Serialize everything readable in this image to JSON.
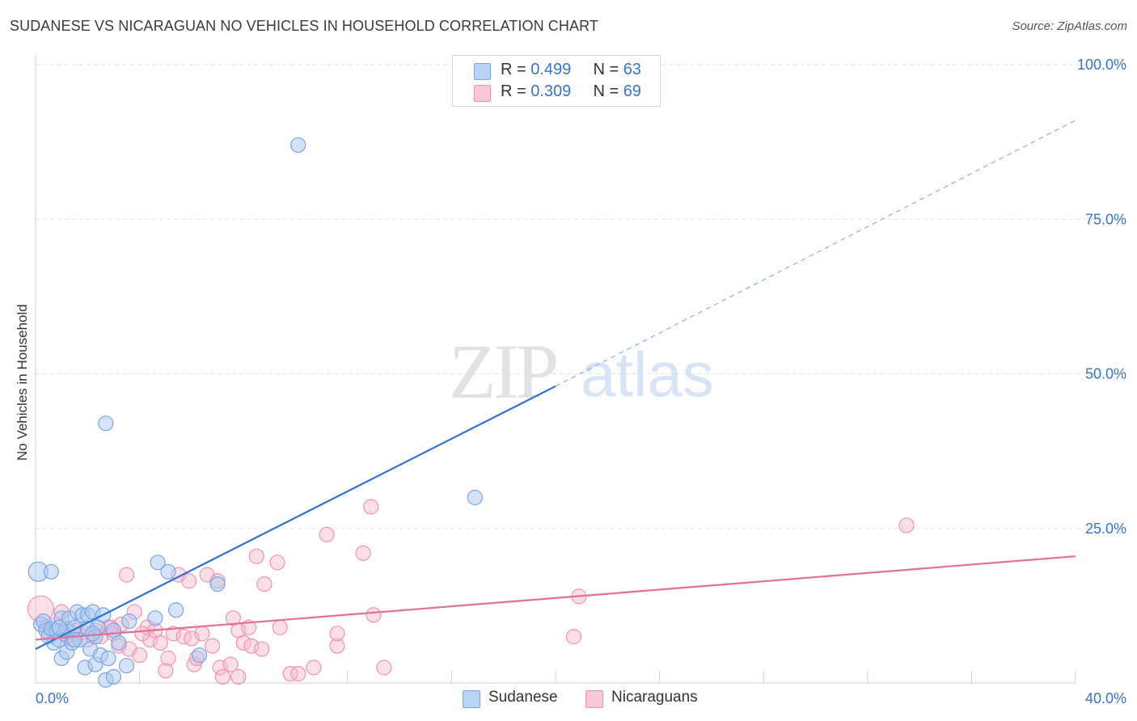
{
  "header": {
    "title": "SUDANESE VS NICARAGUAN NO VEHICLES IN HOUSEHOLD CORRELATION CHART",
    "source": "Source: ZipAtlas.com"
  },
  "legend_top": {
    "rows": [
      {
        "r_label": "R = ",
        "r_value": "0.499",
        "n_label": "N = ",
        "n_value": "63"
      },
      {
        "r_label": "R = ",
        "r_value": "0.309",
        "n_label": "N = ",
        "n_value": "69"
      }
    ]
  },
  "legend_bottom": {
    "items": [
      {
        "label": "Sudanese"
      },
      {
        "label": "Nicaraguans"
      }
    ]
  },
  "watermark": {
    "part1": "ZIP",
    "part2": "atlas"
  },
  "colors": {
    "blue_fill": "#a9c8f0",
    "blue_stroke": "#7aa6e0",
    "blue_line": "#2f72cc",
    "pink_fill": "#f6b8cc",
    "pink_stroke": "#ee94b2",
    "pink_line": "#e0709a",
    "grid": "#e3e3e3",
    "axis_text": "#3a74c8"
  },
  "chart_data": {
    "type": "scatter",
    "title": "SUDANESE VS NICARAGUAN NO VEHICLES IN HOUSEHOLD CORRELATION CHART",
    "xlabel": "",
    "ylabel": "No Vehicles in Household",
    "xlim": [
      0,
      40
    ],
    "ylim": [
      0,
      100
    ],
    "x_tick_labels": [
      "0.0%",
      "40.0%"
    ],
    "y_tick_labels": [
      "100.0%",
      "75.0%",
      "50.0%",
      "25.0%"
    ],
    "y_ticks": [
      100,
      75,
      50,
      25
    ],
    "grid": true,
    "legend_position": "top-center",
    "series": [
      {
        "name": "Sudanese",
        "color": "#a9c8f0",
        "R": 0.499,
        "N": 63,
        "trend": {
          "x0": 0,
          "y0": 5.5,
          "x1": 20,
          "y1": 48,
          "dashed_to_x": 40,
          "dashed_to_y": 91
        },
        "points": [
          [
            0.1,
            18
          ],
          [
            0.2,
            9.5
          ],
          [
            0.3,
            10
          ],
          [
            0.4,
            8.5
          ],
          [
            0.5,
            7.5
          ],
          [
            0.6,
            8.8
          ],
          [
            0.6,
            18
          ],
          [
            0.7,
            6.5
          ],
          [
            0.8,
            8.5
          ],
          [
            0.9,
            7
          ],
          [
            1.0,
            10.5
          ],
          [
            1.0,
            4
          ],
          [
            1.1,
            8
          ],
          [
            1.2,
            5
          ],
          [
            1.2,
            8.8
          ],
          [
            1.3,
            10.5
          ],
          [
            1.4,
            6.5
          ],
          [
            1.5,
            9
          ],
          [
            1.6,
            11.5
          ],
          [
            1.7,
            7
          ],
          [
            1.8,
            11
          ],
          [
            1.9,
            2.5
          ],
          [
            2.0,
            8.8
          ],
          [
            2.0,
            11
          ],
          [
            2.1,
            5.5
          ],
          [
            2.2,
            11.5
          ],
          [
            2.3,
            7.5
          ],
          [
            2.3,
            3
          ],
          [
            2.4,
            9
          ],
          [
            2.5,
            4.5
          ],
          [
            2.6,
            11
          ],
          [
            2.7,
            42
          ],
          [
            2.7,
            0.5
          ],
          [
            2.8,
            4
          ],
          [
            3.0,
            1
          ],
          [
            3.0,
            8.5
          ],
          [
            3.2,
            6.5
          ],
          [
            3.5,
            2.8
          ],
          [
            3.6,
            10
          ],
          [
            4.7,
            19.5
          ],
          [
            4.6,
            10.5
          ],
          [
            5.1,
            18
          ],
          [
            5.4,
            11.8
          ],
          [
            6.3,
            4.5
          ],
          [
            7.0,
            16
          ],
          [
            10.1,
            87
          ],
          [
            16.9,
            30
          ],
          [
            1.5,
            7
          ],
          [
            0.9,
            9
          ],
          [
            2.2,
            8
          ]
        ]
      },
      {
        "name": "Nicaraguans",
        "color": "#f6b8cc",
        "R": 0.309,
        "N": 69,
        "trend": {
          "x0": 0,
          "y0": 7,
          "x1": 40,
          "y1": 20.5
        },
        "points": [
          [
            0.2,
            12
          ],
          [
            0.4,
            9
          ],
          [
            0.8,
            9.5
          ],
          [
            1.0,
            11.5
          ],
          [
            1.2,
            7.5
          ],
          [
            1.5,
            8
          ],
          [
            1.8,
            8.2
          ],
          [
            2.0,
            7
          ],
          [
            2.3,
            8.5
          ],
          [
            2.5,
            7.5
          ],
          [
            2.8,
            9
          ],
          [
            3.0,
            8
          ],
          [
            3.2,
            6
          ],
          [
            3.3,
            9.5
          ],
          [
            3.5,
            17.5
          ],
          [
            3.6,
            5.5
          ],
          [
            3.8,
            11.5
          ],
          [
            4.0,
            4.5
          ],
          [
            4.3,
            9
          ],
          [
            4.4,
            7
          ],
          [
            4.6,
            8.5
          ],
          [
            4.8,
            6.5
          ],
          [
            5.0,
            2
          ],
          [
            5.1,
            4
          ],
          [
            5.3,
            8
          ],
          [
            5.5,
            17.5
          ],
          [
            5.7,
            7.5
          ],
          [
            5.9,
            16.5
          ],
          [
            6.1,
            3
          ],
          [
            6.2,
            4
          ],
          [
            6.4,
            8
          ],
          [
            6.6,
            17.5
          ],
          [
            6.8,
            6
          ],
          [
            7.0,
            16.5
          ],
          [
            7.1,
            2.5
          ],
          [
            7.2,
            1
          ],
          [
            7.5,
            3
          ],
          [
            7.6,
            10.5
          ],
          [
            7.8,
            8.5
          ],
          [
            7.8,
            1
          ],
          [
            8.0,
            6.5
          ],
          [
            8.2,
            9
          ],
          [
            8.3,
            6
          ],
          [
            8.5,
            20.5
          ],
          [
            8.7,
            5.5
          ],
          [
            8.8,
            16
          ],
          [
            9.3,
            19.5
          ],
          [
            9.4,
            9
          ],
          [
            9.8,
            1.5
          ],
          [
            10.1,
            1.5
          ],
          [
            10.7,
            2.5
          ],
          [
            11.2,
            24
          ],
          [
            11.6,
            6
          ],
          [
            11.6,
            8
          ],
          [
            12.6,
            21
          ],
          [
            12.9,
            28.5
          ],
          [
            13.0,
            11
          ],
          [
            13.4,
            2.5
          ],
          [
            20.9,
            14
          ],
          [
            20.7,
            7.5
          ],
          [
            33.5,
            25.5
          ],
          [
            1.6,
            8.5
          ],
          [
            2.9,
            9
          ],
          [
            4.1,
            8
          ],
          [
            6.0,
            7.2
          ]
        ]
      }
    ]
  }
}
